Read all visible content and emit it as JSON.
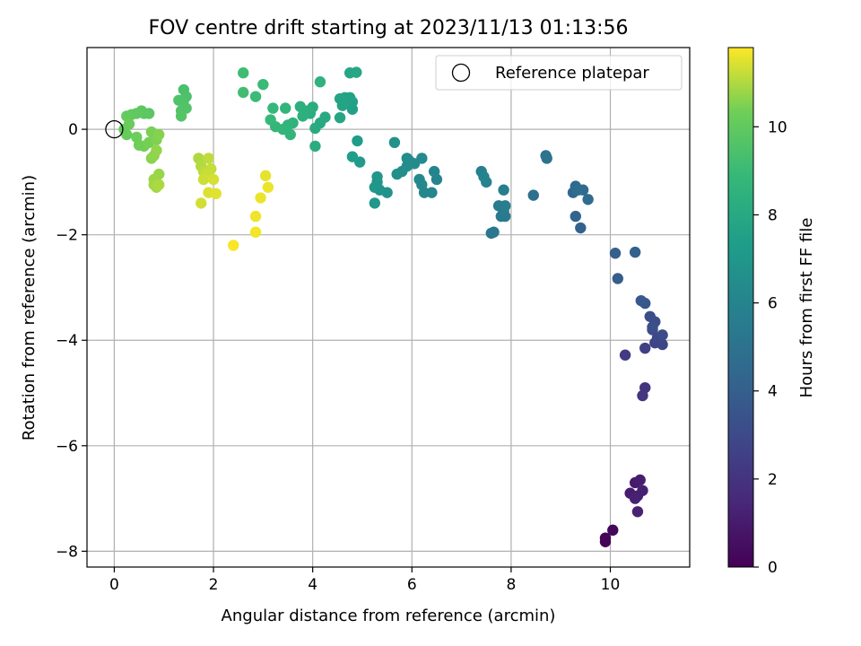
{
  "chart_data": {
    "type": "scatter",
    "title": "FOV centre drift starting at 2023/11/13 01:13:56",
    "xlabel": "Angular distance from reference (arcmin)",
    "ylabel": "Rotation from reference (arcmin)",
    "xlim": [
      -0.55,
      11.6
    ],
    "ylim": [
      -8.3,
      1.55
    ],
    "xticks": [
      0,
      2,
      4,
      6,
      8,
      10
    ],
    "yticks": [
      -8,
      -6,
      -4,
      -2,
      0
    ],
    "grid": true,
    "legend": {
      "placement": "upper right",
      "entries": [
        "Reference platepar"
      ]
    },
    "reference_point": {
      "x": 0,
      "y": 0
    },
    "colorbar": {
      "label": "Hours from first FF file",
      "colormap": "viridis",
      "range": [
        0,
        11.8
      ],
      "ticks": [
        0,
        2,
        4,
        6,
        8,
        10
      ]
    },
    "points": [
      [
        9.9,
        -7.82,
        0.1
      ],
      [
        9.9,
        -7.75,
        0.15
      ],
      [
        10.05,
        -7.6,
        0.3
      ],
      [
        10.5,
        -6.7,
        1.0
      ],
      [
        10.6,
        -6.65,
        1.05
      ],
      [
        10.4,
        -6.9,
        1.1
      ],
      [
        10.55,
        -6.95,
        1.15
      ],
      [
        10.65,
        -6.85,
        1.2
      ],
      [
        10.5,
        -7.0,
        1.25
      ],
      [
        10.55,
        -7.25,
        1.3
      ],
      [
        10.7,
        -4.9,
        2.0
      ],
      [
        10.65,
        -5.05,
        2.1
      ],
      [
        10.3,
        -4.28,
        2.3
      ],
      [
        10.7,
        -4.15,
        2.5
      ],
      [
        10.9,
        -4.05,
        2.7
      ],
      [
        11.05,
        -4.08,
        2.8
      ],
      [
        10.95,
        -3.95,
        2.9
      ],
      [
        10.85,
        -3.8,
        3.0
      ],
      [
        11.05,
        -3.9,
        3.05
      ],
      [
        10.9,
        -3.65,
        3.1
      ],
      [
        10.8,
        -3.55,
        3.2
      ],
      [
        10.85,
        -3.75,
        3.3
      ],
      [
        10.7,
        -3.3,
        3.6
      ],
      [
        10.62,
        -3.25,
        3.7
      ],
      [
        10.15,
        -2.83,
        3.9
      ],
      [
        10.1,
        -2.35,
        4.0
      ],
      [
        10.5,
        -2.33,
        4.1
      ],
      [
        9.4,
        -1.87,
        4.2
      ],
      [
        9.3,
        -1.65,
        4.3
      ],
      [
        9.25,
        -1.2,
        4.4
      ],
      [
        9.3,
        -1.08,
        4.5
      ],
      [
        9.45,
        -1.15,
        4.6
      ],
      [
        9.55,
        -1.33,
        4.65
      ],
      [
        9.35,
        -1.15,
        4.7
      ],
      [
        8.45,
        -1.25,
        4.8
      ],
      [
        8.7,
        -0.5,
        5.0
      ],
      [
        8.72,
        -0.55,
        5.1
      ],
      [
        7.6,
        -1.97,
        5.3
      ],
      [
        7.65,
        -1.95,
        5.35
      ],
      [
        7.8,
        -1.65,
        5.4
      ],
      [
        7.88,
        -1.65,
        5.45
      ],
      [
        7.85,
        -1.55,
        5.5
      ],
      [
        7.75,
        -1.45,
        5.55
      ],
      [
        7.88,
        -1.45,
        5.6
      ],
      [
        7.85,
        -1.15,
        5.7
      ],
      [
        7.4,
        -0.8,
        5.8
      ],
      [
        7.5,
        -1.0,
        5.9
      ],
      [
        7.45,
        -0.9,
        5.95
      ],
      [
        6.5,
        -0.95,
        6.0
      ],
      [
        6.45,
        -0.8,
        6.05
      ],
      [
        6.4,
        -1.2,
        6.1
      ],
      [
        6.25,
        -1.2,
        6.15
      ],
      [
        6.2,
        -1.05,
        6.2
      ],
      [
        6.15,
        -0.95,
        6.25
      ],
      [
        6.2,
        -0.55,
        6.3
      ],
      [
        6.05,
        -0.65,
        6.35
      ],
      [
        5.95,
        -0.6,
        6.4
      ],
      [
        5.9,
        -0.55,
        6.45
      ],
      [
        5.9,
        -0.7,
        6.5
      ],
      [
        5.8,
        -0.8,
        6.55
      ],
      [
        5.7,
        -0.85,
        6.6
      ],
      [
        5.65,
        -0.25,
        6.7
      ],
      [
        5.5,
        -1.2,
        6.8
      ],
      [
        5.35,
        -1.15,
        6.85
      ],
      [
        5.3,
        -1.0,
        6.9
      ],
      [
        5.3,
        -0.9,
        6.95
      ],
      [
        5.25,
        -1.1,
        7.0
      ],
      [
        5.25,
        -1.4,
        7.05
      ],
      [
        4.95,
        -0.62,
        7.2
      ],
      [
        4.9,
        -0.22,
        7.3
      ],
      [
        4.8,
        -0.52,
        7.35
      ],
      [
        4.8,
        0.38,
        7.5
      ],
      [
        4.8,
        0.52,
        7.55
      ],
      [
        4.75,
        0.6,
        7.6
      ],
      [
        4.65,
        0.6,
        7.65
      ],
      [
        4.6,
        0.45,
        7.7
      ],
      [
        4.55,
        0.58,
        7.75
      ],
      [
        4.55,
        0.22,
        7.8
      ],
      [
        4.75,
        1.07,
        7.85
      ],
      [
        4.88,
        1.08,
        7.9
      ],
      [
        4.25,
        0.23,
        8.0
      ],
      [
        4.15,
        0.12,
        8.05
      ],
      [
        4.05,
        0.02,
        8.1
      ],
      [
        4.05,
        -0.32,
        8.15
      ],
      [
        4.0,
        0.42,
        8.2
      ],
      [
        3.95,
        0.3,
        8.25
      ],
      [
        3.9,
        0.35,
        8.3
      ],
      [
        3.8,
        0.25,
        8.35
      ],
      [
        3.75,
        0.43,
        8.4
      ],
      [
        4.15,
        0.9,
        8.5
      ],
      [
        3.6,
        0.12,
        8.55
      ],
      [
        3.5,
        0.08,
        8.6
      ],
      [
        3.45,
        0.4,
        8.65
      ],
      [
        3.55,
        -0.1,
        8.7
      ],
      [
        3.4,
        0.0,
        8.75
      ],
      [
        3.25,
        0.05,
        8.8
      ],
      [
        3.2,
        0.4,
        8.85
      ],
      [
        3.15,
        0.18,
        8.9
      ],
      [
        3.0,
        0.85,
        9.0
      ],
      [
        2.85,
        0.62,
        9.05
      ],
      [
        2.6,
        1.07,
        9.1
      ],
      [
        2.6,
        0.7,
        9.2
      ],
      [
        1.4,
        0.75,
        9.4
      ],
      [
        1.45,
        0.62,
        9.45
      ],
      [
        1.4,
        0.55,
        9.5
      ],
      [
        1.3,
        0.55,
        9.55
      ],
      [
        1.45,
        0.4,
        9.6
      ],
      [
        1.35,
        0.35,
        9.65
      ],
      [
        1.35,
        0.25,
        9.7
      ],
      [
        0.7,
        0.3,
        9.8
      ],
      [
        0.6,
        0.3,
        9.85
      ],
      [
        0.55,
        0.35,
        9.9
      ],
      [
        0.45,
        0.3,
        9.95
      ],
      [
        0.35,
        0.28,
        10.0
      ],
      [
        0.25,
        0.25,
        10.05
      ],
      [
        0.2,
        0.0,
        10.1
      ],
      [
        0.25,
        -0.1,
        10.15
      ],
      [
        0.3,
        0.1,
        10.2
      ],
      [
        0.45,
        -0.15,
        10.25
      ],
      [
        0.5,
        -0.3,
        10.3
      ],
      [
        0.6,
        -0.32,
        10.35
      ],
      [
        0.7,
        -0.25,
        10.4
      ],
      [
        0.75,
        -0.05,
        10.45
      ],
      [
        0.85,
        -0.2,
        10.5
      ],
      [
        0.9,
        -0.1,
        10.55
      ],
      [
        0.75,
        -0.55,
        10.6
      ],
      [
        0.8,
        -0.5,
        10.65
      ],
      [
        0.85,
        -0.4,
        10.7
      ],
      [
        0.9,
        -0.85,
        10.75
      ],
      [
        0.8,
        -0.95,
        10.8
      ],
      [
        0.8,
        -1.05,
        10.85
      ],
      [
        0.85,
        -1.1,
        10.9
      ],
      [
        0.9,
        -1.05,
        10.95
      ],
      [
        1.7,
        -0.55,
        11.0
      ],
      [
        1.75,
        -0.7,
        11.05
      ],
      [
        1.8,
        -0.8,
        11.1
      ],
      [
        1.9,
        -0.55,
        11.15
      ],
      [
        1.95,
        -0.75,
        11.2
      ],
      [
        1.85,
        -0.85,
        11.25
      ],
      [
        1.8,
        -0.95,
        11.3
      ],
      [
        1.75,
        -1.4,
        11.35
      ],
      [
        2.0,
        -0.95,
        11.4
      ],
      [
        1.9,
        -1.2,
        11.45
      ],
      [
        2.05,
        -1.22,
        11.5
      ],
      [
        3.05,
        -0.88,
        11.55
      ],
      [
        3.1,
        -1.1,
        11.6
      ],
      [
        2.95,
        -1.3,
        11.62
      ],
      [
        2.85,
        -1.65,
        11.65
      ],
      [
        2.85,
        -1.95,
        11.7
      ],
      [
        2.4,
        -2.2,
        11.75
      ]
    ]
  }
}
